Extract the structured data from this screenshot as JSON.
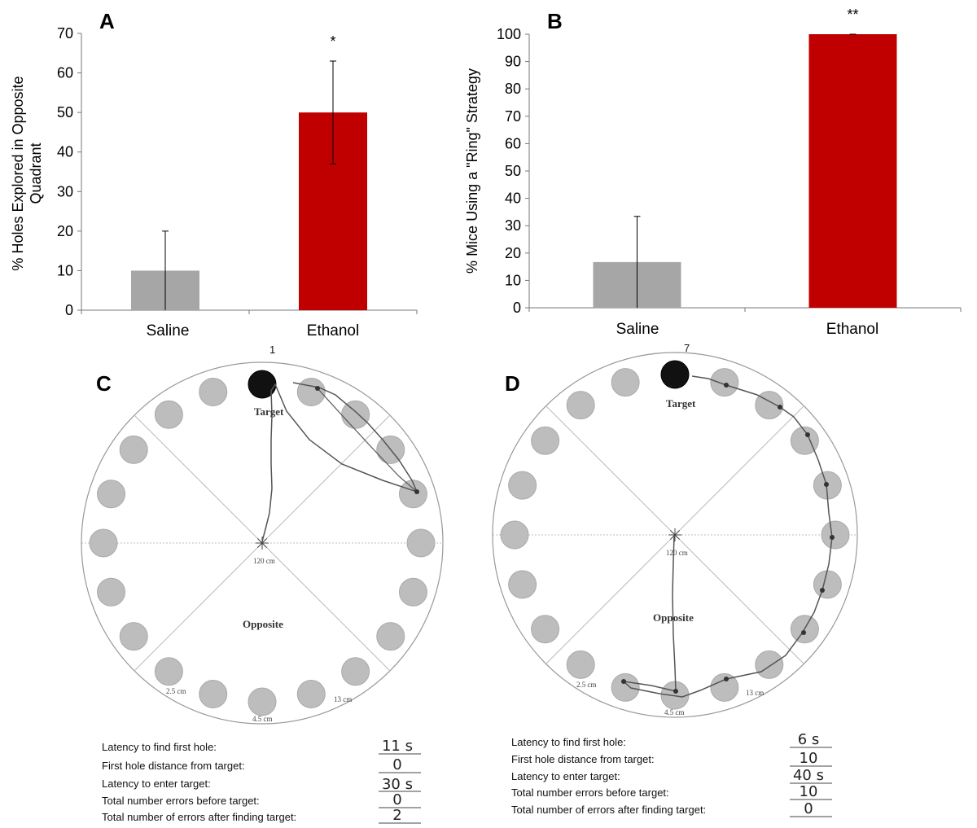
{
  "chart_data": [
    {
      "panel": "A",
      "type": "bar",
      "categories": [
        "Saline",
        "Ethanol"
      ],
      "values": [
        10,
        50
      ],
      "errors": [
        10,
        13
      ],
      "significance": [
        "",
        "*"
      ],
      "colors": [
        "#a6a6a6",
        "#c00000"
      ],
      "ylabel_lines": [
        "% Holes Explored in Opposite",
        "Quadrant"
      ],
      "ylim": [
        0,
        70
      ],
      "yticks": [
        0,
        10,
        20,
        30,
        40,
        50,
        60,
        70
      ]
    },
    {
      "panel": "B",
      "type": "bar",
      "categories": [
        "Saline",
        "Ethanol"
      ],
      "values": [
        16.7,
        100
      ],
      "errors": [
        16.7,
        0
      ],
      "significance": [
        "",
        "**"
      ],
      "colors": [
        "#a6a6a6",
        "#c00000"
      ],
      "ylabel_lines": [
        "% Mice Using a \"Ring\" Strategy"
      ],
      "ylim": [
        0,
        100
      ],
      "yticks": [
        0,
        10,
        20,
        30,
        40,
        50,
        60,
        70,
        80,
        90,
        100
      ]
    }
  ],
  "maze": {
    "C": {
      "letter": "C",
      "mouse_mark": "1",
      "target_label": "Target",
      "opposite_label": "Opposite",
      "diameter_label": "120 cm",
      "hole_spacing_label": "2.5 cm",
      "hole_size_label": "4.5 cm",
      "edge_label": "13 cm"
    },
    "D": {
      "letter": "D",
      "mouse_mark": "7",
      "target_label": "Target",
      "opposite_label": "Opposite",
      "diameter_label": "120 cm",
      "hole_spacing_label": "2.5 cm",
      "hole_size_label": "4.5 cm",
      "edge_label": "13 cm"
    }
  },
  "measures": {
    "labels": [
      "Latency to find first hole:",
      "First hole distance from target:",
      "Latency to enter target:",
      "Total number  errors before target:",
      "Total number  of errors after finding target:"
    ],
    "C_values": [
      "11 s",
      "0",
      "30 s",
      "0",
      "2"
    ],
    "D_values": [
      "6 s",
      "10",
      "40 s",
      "10",
      "0"
    ]
  }
}
